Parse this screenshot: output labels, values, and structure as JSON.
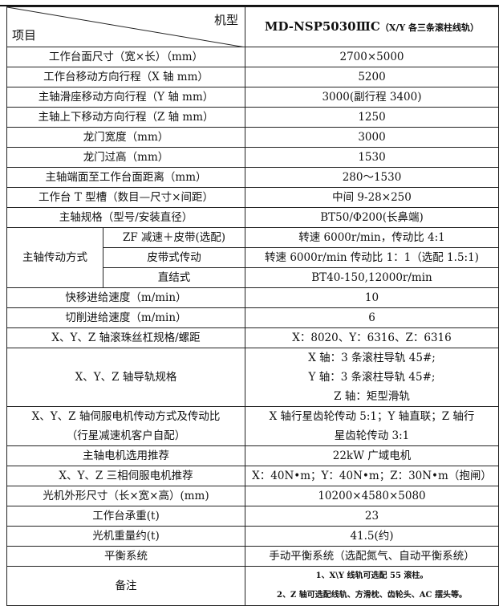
{
  "header": {
    "col_label": "机型",
    "row_label": "项目",
    "model": "MD-NSP5030ⅢC",
    "model_note": "（X/Y 各三条滚柱线轨）"
  },
  "rows": [
    {
      "label": "工作台面尺寸（宽×长）（mm）",
      "value": "2700×5000"
    },
    {
      "label": "工作台移动方向行程（X 轴 mm）",
      "value": "5200"
    },
    {
      "label": "主轴滑座移动方向行程（Y 轴 mm）",
      "value": "3000(副行程 3400)"
    },
    {
      "label": "主轴上下移动方向行程（Z 轴 mm）",
      "value": "1250"
    },
    {
      "label": "龙门宽度（mm）",
      "value": "3000"
    },
    {
      "label": "龙门过高（mm）",
      "value": "1530"
    },
    {
      "label": "主轴端面至工作台面距离（mm）",
      "value": "280～1530"
    },
    {
      "label": "工作台 T 型槽（数目—尺寸×间距）",
      "value": "中间 9-28×250"
    },
    {
      "label": "主轴规格（型号/安装直径）",
      "value": "BT50/Φ200(长鼻端)"
    }
  ],
  "drive": {
    "label": "主轴传动方式",
    "items": [
      {
        "label": "ZF 减速＋皮带(选配)",
        "value": "转速 6000r/min，传动比 4:1"
      },
      {
        "label": "皮带式传动",
        "value": "转速 6000r/min 传动比 1：1（选配 1.5:1)"
      },
      {
        "label": "直结式",
        "value": "BT40-150,12000r/min"
      }
    ]
  },
  "rows2": [
    {
      "label": "快移进给速度（m/min）",
      "value": "10"
    },
    {
      "label": "切削进给速度（m/min）",
      "value": "6"
    },
    {
      "label": "X、Y、Z 轴滚珠丝杠规格/螺距",
      "value": "X：8020、Y：6316、Z：6316"
    }
  ],
  "guide": {
    "label": "X、Y、Z 轴导轨规格",
    "lines": [
      "X 轴：3 条滚柱导轨 45#;",
      "Y 轴：3 条滚柱导轨 45#;",
      "Z 轴：矩型滑轨"
    ]
  },
  "servo": {
    "label_lines": [
      "X、Y、Z 轴伺服电机传动方式及传动比",
      "（行星减速机客户自配）"
    ],
    "value_lines": [
      "X 轴行星齿轮传动 5:1；Y 轴直联；Z 轴行",
      "星齿轮传动 3:1"
    ]
  },
  "rows3": [
    {
      "label": "主轴电机选用推荐",
      "value": "22kW 广域电机"
    },
    {
      "label": "X、Y、Z 三相伺服电机推荐",
      "value": "X：40N•m；Y：40N•m；Z：30N•m（抱闸）"
    },
    {
      "label": "光机外形尺寸（长×宽×高）(mm)",
      "value": "10200×4580×5080"
    },
    {
      "label": "工作台承重(t)",
      "value": "23"
    },
    {
      "label": "光机重量约(t)",
      "value": "41.5(约)"
    },
    {
      "label": "平衡系统",
      "value": "手动平衡系统（选配氮气、自动平衡系统）"
    }
  ],
  "remarks": {
    "label": "备注",
    "lines": [
      "1、X\\Y 线轨可选配 55 滚柱。",
      "2、Z 轴可选配线轨、方滑枕、齿轮头、AC 摆头等。"
    ]
  }
}
